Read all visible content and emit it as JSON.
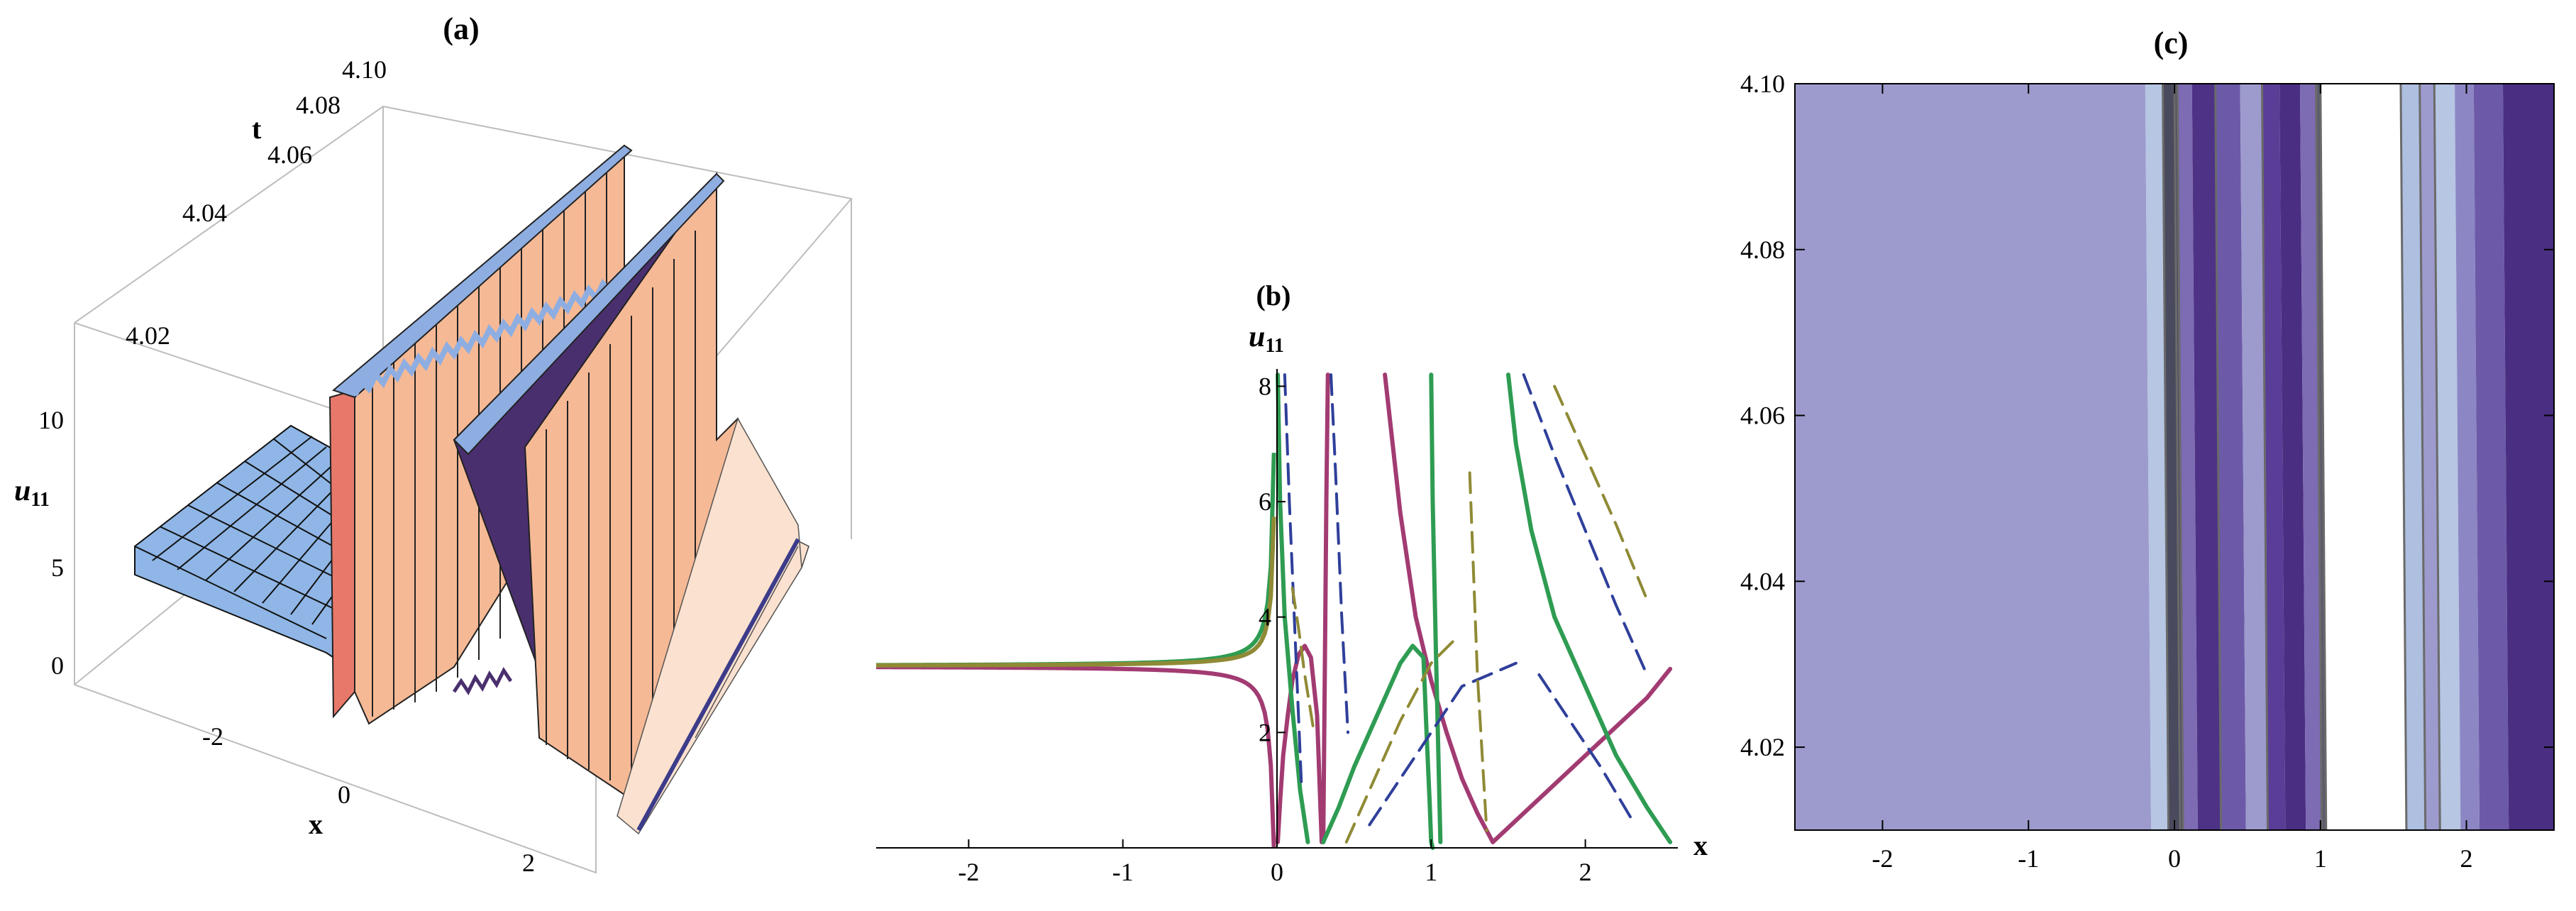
{
  "chart_data": [
    {
      "panel": "(a)",
      "type": "surface3d",
      "xlabel": "x",
      "ylabel": "t",
      "zlabel_main": "u",
      "zlabel_sub": "11",
      "x_ticks": [
        "-2",
        "0",
        "2"
      ],
      "t_ticks": [
        "4.02",
        "4.04",
        "4.06",
        "4.08",
        "4.10"
      ],
      "z_ticks": [
        "0",
        "5",
        "10"
      ],
      "xlim": [
        -2.6,
        2.6
      ],
      "tlim": [
        4.01,
        4.1
      ],
      "zlim": [
        0,
        12
      ],
      "colors": {
        "left_plane": "#8fb6e6",
        "surface": "#f6b995",
        "surface_light": "#fbe1cf",
        "inner": "#4a2f6e",
        "cap": "#8eaee2"
      }
    },
    {
      "panel": "(b)",
      "type": "line",
      "xlabel": "x",
      "ylabel_main": "u",
      "ylabel_sub": "11",
      "x_ticks": [
        "-2",
        "-1",
        "0",
        "1",
        "2"
      ],
      "y_ticks": [
        "2",
        "4",
        "6",
        "8"
      ],
      "xlim": [
        -2.6,
        2.6
      ],
      "ylim": [
        0,
        8.3
      ],
      "baseline": 3.15,
      "series": [
        {
          "color": "#a23b72",
          "style": "solid",
          "x": [
            0.005,
            0.02,
            0.04,
            0.07,
            0.1,
            0.14,
            0.18,
            0.22,
            0.26,
            0.29
          ],
          "y": [
            0.1,
            0.8,
            1.6,
            2.3,
            2.9,
            3.35,
            3.5,
            3.3,
            2.3,
            0.1
          ]
        },
        {
          "color": "#a23b72",
          "style": "solid",
          "x": [
            0.3,
            0.31,
            0.32,
            0.33
          ],
          "y": [
            0.1,
            3.0,
            6.0,
            8.2
          ]
        },
        {
          "color": "#a23b72",
          "style": "solid",
          "x": [
            0.7,
            0.8,
            0.9,
            1.0,
            1.1,
            1.2,
            1.3,
            1.4
          ],
          "y": [
            8.2,
            5.8,
            4.0,
            2.9,
            2.0,
            1.2,
            0.6,
            0.1
          ]
        },
        {
          "color": "#a23b72",
          "style": "solid",
          "x": [
            1.4,
            1.6,
            1.8,
            2.0,
            2.2,
            2.4,
            2.55
          ],
          "y": [
            0.1,
            0.6,
            1.1,
            1.6,
            2.1,
            2.6,
            3.1
          ]
        },
        {
          "color": "#2e9c52",
          "style": "solid",
          "x": [
            0.005,
            0.02,
            0.05,
            0.1,
            0.15,
            0.2
          ],
          "y": [
            8.2,
            6.0,
            4.0,
            2.4,
            1.0,
            0.1
          ]
        },
        {
          "color": "#2e9c52",
          "style": "solid",
          "x": [
            0.3,
            0.4,
            0.5,
            0.6,
            0.7,
            0.8,
            0.88,
            0.95
          ],
          "y": [
            0.1,
            0.7,
            1.4,
            2.0,
            2.6,
            3.2,
            3.5,
            3.3
          ]
        },
        {
          "color": "#2e9c52",
          "style": "solid",
          "x": [
            0.95,
            0.97,
            0.99,
            1.0,
            1.01
          ],
          "y": [
            3.3,
            2.0,
            0.8,
            0.1,
            0.0
          ]
        },
        {
          "color": "#2e9c52",
          "style": "solid",
          "x": [
            1.0,
            1.01,
            1.03,
            1.06
          ],
          "y": [
            8.2,
            6.0,
            3.5,
            0.1
          ]
        },
        {
          "color": "#2e9c52",
          "style": "solid",
          "x": [
            1.5,
            1.55,
            1.65,
            1.8,
            2.0,
            2.2,
            2.4,
            2.55
          ],
          "y": [
            8.2,
            7.0,
            5.5,
            4.0,
            2.8,
            1.6,
            0.7,
            0.1
          ]
        },
        {
          "color": "#2f3f9a",
          "style": "dashed",
          "x": [
            0.05,
            0.08,
            0.12,
            0.16
          ],
          "y": [
            8.2,
            6.0,
            3.5,
            1.0
          ]
        },
        {
          "color": "#2f3f9a",
          "style": "dashed",
          "x": [
            0.35,
            0.38,
            0.42,
            0.46
          ],
          "y": [
            8.2,
            6.5,
            4.0,
            2.0
          ]
        },
        {
          "color": "#2f3f9a",
          "style": "dashed",
          "x": [
            0.6,
            0.9,
            1.2,
            1.55
          ],
          "y": [
            0.4,
            1.6,
            2.8,
            3.2
          ]
        },
        {
          "color": "#2f3f9a",
          "style": "dashed",
          "x": [
            1.6,
            1.8,
            2.0,
            2.2,
            2.4
          ],
          "y": [
            8.2,
            6.8,
            5.5,
            4.2,
            3.0
          ]
        },
        {
          "color": "#2f3f9a",
          "style": "dashed",
          "x": [
            1.7,
            1.9,
            2.1,
            2.3
          ],
          "y": [
            3.0,
            2.2,
            1.4,
            0.5
          ]
        },
        {
          "color": "#8f8a35",
          "style": "dashed",
          "x": [
            0.1,
            0.14,
            0.18,
            0.24
          ],
          "y": [
            4.5,
            3.8,
            3.0,
            2.0
          ]
        },
        {
          "color": "#8f8a35",
          "style": "dashed",
          "x": [
            0.45,
            0.6,
            0.8,
            1.0,
            1.15
          ],
          "y": [
            0.1,
            1.0,
            2.2,
            3.2,
            3.6
          ]
        },
        {
          "color": "#8f8a35",
          "style": "dashed",
          "x": [
            1.25,
            1.3,
            1.36
          ],
          "y": [
            6.5,
            3.0,
            0.3
          ]
        },
        {
          "color": "#8f8a35",
          "style": "dashed",
          "x": [
            1.8,
            2.0,
            2.2,
            2.4
          ],
          "y": [
            8.0,
            6.8,
            5.6,
            4.3
          ]
        }
      ]
    },
    {
      "panel": "(c)",
      "type": "contour",
      "x_ticks": [
        "-2",
        "-1",
        "0",
        "1",
        "2"
      ],
      "y_ticks": [
        "4.02",
        "4.04",
        "4.06",
        "4.08",
        "4.10"
      ],
      "xlim": [
        -2.6,
        2.6
      ],
      "ylim": [
        4.01,
        4.1
      ],
      "bands": [
        {
          "x0": -2.6,
          "x1": -0.2,
          "color": "#9d9bcd"
        },
        {
          "x0": -0.2,
          "x1": -0.08,
          "color": "#b6c6e3"
        },
        {
          "x0": -0.08,
          "x1": 0.02,
          "color": "#4a4a5e"
        },
        {
          "x0": 0.02,
          "x1": 0.12,
          "color": "#7d6bb3"
        },
        {
          "x0": 0.12,
          "x1": 0.28,
          "color": "#4e3286"
        },
        {
          "x0": 0.28,
          "x1": 0.45,
          "color": "#6c5aa8"
        },
        {
          "x0": 0.45,
          "x1": 0.6,
          "color": "#9d9bcd"
        },
        {
          "x0": 0.6,
          "x1": 0.72,
          "color": "#5a3d96"
        },
        {
          "x0": 0.72,
          "x1": 0.86,
          "color": "#4a2e82"
        },
        {
          "x0": 0.86,
          "x1": 0.97,
          "color": "#7d6bb3"
        },
        {
          "x0": 0.97,
          "x1": 1.0,
          "color": "#5c5c6c"
        },
        {
          "x0": 1.0,
          "x1": 1.55,
          "color": "#ffffff"
        },
        {
          "x0": 1.55,
          "x1": 1.68,
          "color": "#aebfe0"
        },
        {
          "x0": 1.68,
          "x1": 1.78,
          "color": "#9d9bcd"
        },
        {
          "x0": 1.78,
          "x1": 1.92,
          "color": "#b6c6e3"
        },
        {
          "x0": 1.92,
          "x1": 2.05,
          "color": "#8d86c4"
        },
        {
          "x0": 2.05,
          "x1": 2.25,
          "color": "#6c5aa8"
        },
        {
          "x0": 2.25,
          "x1": 2.6,
          "color": "#4a2e82"
        }
      ]
    }
  ]
}
